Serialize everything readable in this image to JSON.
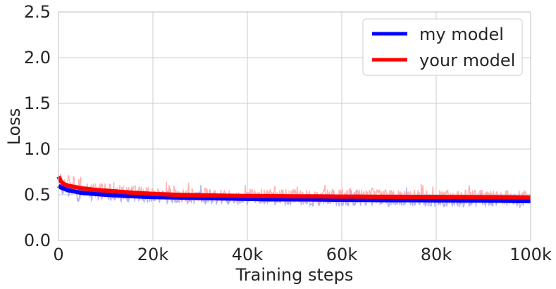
{
  "chart_data": {
    "type": "line",
    "title": "",
    "xlabel": "Training steps",
    "ylabel": "Loss",
    "xlim": [
      0,
      100000
    ],
    "ylim": [
      0.0,
      2.5
    ],
    "grid": true,
    "legend_position": "top-right",
    "x_ticks": [
      0,
      20000,
      40000,
      60000,
      80000,
      100000
    ],
    "x_tick_labels": [
      "0",
      "20k",
      "40k",
      "60k",
      "80k",
      "100k"
    ],
    "y_ticks": [
      0.0,
      0.5,
      1.0,
      1.5,
      2.0,
      2.5
    ],
    "y_tick_labels": [
      "0.0",
      "0.5",
      "1.0",
      "1.5",
      "2.0",
      "2.5"
    ],
    "x": [
      0,
      500,
      1000,
      2000,
      3000,
      5000,
      7500,
      10000,
      15000,
      20000,
      25000,
      30000,
      35000,
      40000,
      45000,
      50000,
      55000,
      60000,
      65000,
      70000,
      75000,
      80000,
      85000,
      90000,
      95000,
      100000
    ],
    "series": [
      {
        "name": "my model",
        "color": "#0000ff",
        "raw_color": "#9999ff",
        "values": [
          0.6,
          0.58,
          0.57,
          0.55,
          0.54,
          0.52,
          0.51,
          0.5,
          0.485,
          0.475,
          0.47,
          0.465,
          0.46,
          0.455,
          0.45,
          0.45,
          0.448,
          0.445,
          0.443,
          0.44,
          0.44,
          0.438,
          0.437,
          0.435,
          0.434,
          0.43
        ],
        "raw_spread": 0.07
      },
      {
        "name": "your model",
        "color": "#ff0000",
        "raw_color": "#ff9999",
        "values": [
          0.7,
          0.65,
          0.62,
          0.6,
          0.59,
          0.57,
          0.555,
          0.545,
          0.525,
          0.51,
          0.5,
          0.495,
          0.49,
          0.487,
          0.485,
          0.483,
          0.482,
          0.48,
          0.479,
          0.478,
          0.477,
          0.476,
          0.475,
          0.474,
          0.473,
          0.47
        ],
        "raw_spread": 0.08
      }
    ]
  }
}
